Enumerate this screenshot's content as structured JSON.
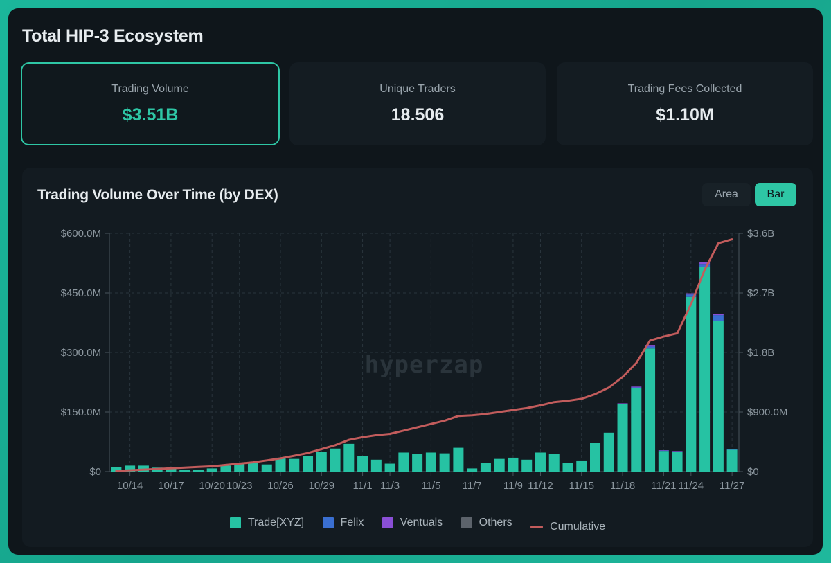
{
  "page": {
    "title": "Total HIP-3 Ecosystem"
  },
  "stats": [
    {
      "label": "Trading Volume",
      "value": "$3.51B"
    },
    {
      "label": "Unique Traders",
      "value": "18.506"
    },
    {
      "label": "Trading Fees Collected",
      "value": "$1.10M"
    }
  ],
  "chart": {
    "title": "Trading Volume Over Time (by DEX)",
    "toggle": {
      "area": "Area",
      "bar": "Bar"
    },
    "watermark": "hyperzap"
  },
  "colors": {
    "trade": "#26c2a3",
    "felix": "#3a6fd1",
    "ventuals": "#8a4fd6",
    "others": "#5c636b",
    "cumulative": "#c25c5c"
  },
  "chart_data": {
    "type": "bar",
    "title": "Trading Volume Over Time (by DEX)",
    "x_ticks": [
      "10/14",
      "10/17",
      "10/20",
      "10/23",
      "10/26",
      "10/29",
      "11/1",
      "11/3",
      "11/5",
      "11/7",
      "11/9",
      "11/12",
      "11/15",
      "11/18",
      "11/21",
      "11/24",
      "11/27"
    ],
    "y_left": {
      "min": 0,
      "max": 600,
      "ticks": [
        "$0",
        "$150.0M",
        "$300.0M",
        "$450.0M",
        "$600.0M"
      ]
    },
    "y_right": {
      "min": 0,
      "max": 3.6,
      "ticks": [
        "$0",
        "$900.0M",
        "$1.8B",
        "$2.7B",
        "$3.6B"
      ]
    },
    "units": "millions USD",
    "series": [
      {
        "name": "Trade[XYZ]",
        "color_key": "trade",
        "values": [
          12,
          15,
          15,
          10,
          10,
          5,
          5,
          8,
          15,
          20,
          22,
          18,
          35,
          32,
          40,
          50,
          58,
          70,
          40,
          30,
          20,
          48,
          45,
          48,
          46,
          60,
          8,
          22,
          32,
          35,
          30,
          48,
          45,
          22,
          28,
          72,
          98,
          170,
          210,
          310,
          52,
          50,
          440,
          515,
          380,
          55
        ]
      },
      {
        "name": "Felix",
        "color_key": "felix",
        "values": [
          0,
          0,
          0,
          0,
          0,
          0,
          0,
          0,
          0,
          0,
          0,
          0,
          0,
          0,
          0,
          0,
          0,
          0,
          0,
          0,
          0,
          0,
          0,
          0,
          0,
          0,
          0,
          0,
          0,
          0,
          0,
          0,
          0,
          0,
          0,
          0,
          0,
          1,
          2,
          5,
          1,
          1,
          6,
          8,
          14,
          1
        ]
      },
      {
        "name": "Ventuals",
        "color_key": "ventuals",
        "values": [
          0,
          0,
          0,
          0,
          0,
          0,
          0,
          0,
          0,
          0,
          0,
          0,
          0,
          0,
          0,
          0,
          0,
          0,
          0,
          0,
          0,
          0,
          0,
          0,
          0,
          0,
          0,
          0,
          0,
          0,
          0,
          0,
          0,
          0,
          0,
          0,
          0,
          1,
          2,
          4,
          1,
          1,
          3,
          4,
          3,
          1
        ]
      },
      {
        "name": "Others",
        "color_key": "others",
        "values": [
          0,
          0,
          0,
          0,
          0,
          0,
          0,
          0,
          0,
          0,
          0,
          0,
          0,
          0,
          0,
          0,
          0,
          0,
          0,
          0,
          0,
          0,
          0,
          0,
          0,
          0,
          0,
          0,
          0,
          0,
          0,
          0,
          0,
          0,
          0,
          0,
          0,
          0,
          0,
          0,
          0,
          0,
          0,
          0,
          0,
          0
        ]
      }
    ],
    "cumulative": {
      "name": "Cumulative",
      "axis": "right",
      "units": "billions USD",
      "values": [
        0.01,
        0.02,
        0.03,
        0.04,
        0.05,
        0.06,
        0.07,
        0.08,
        0.1,
        0.12,
        0.14,
        0.17,
        0.2,
        0.24,
        0.28,
        0.34,
        0.4,
        0.48,
        0.52,
        0.55,
        0.57,
        0.62,
        0.67,
        0.72,
        0.77,
        0.84,
        0.85,
        0.87,
        0.9,
        0.93,
        0.96,
        1.0,
        1.05,
        1.07,
        1.1,
        1.17,
        1.27,
        1.43,
        1.64,
        1.98,
        2.04,
        2.09,
        2.53,
        3.05,
        3.45,
        3.51
      ]
    },
    "legend": [
      "Trade[XYZ]",
      "Felix",
      "Ventuals",
      "Others",
      "Cumulative"
    ]
  }
}
